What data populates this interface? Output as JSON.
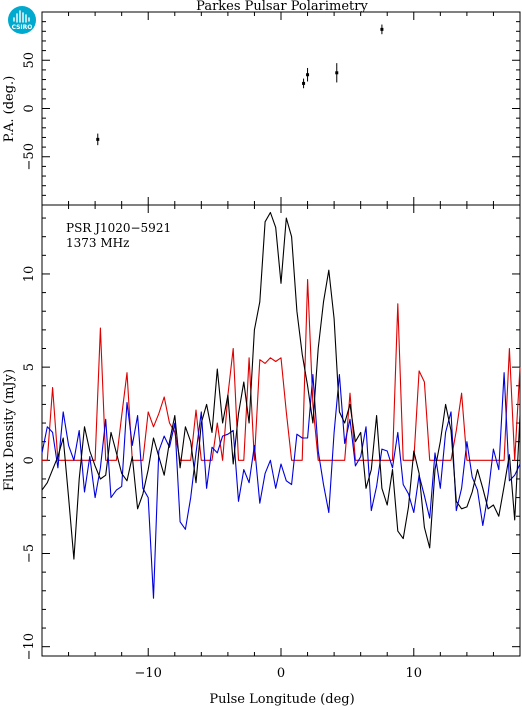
{
  "chart_data": [
    {
      "type": "scatter",
      "title": "Parkes Pulsar Polarimetry",
      "ylabel": "P.A. (deg.)",
      "xlim": [
        -18,
        18
      ],
      "ylim": [
        -100,
        100
      ],
      "yticks": [
        -50,
        0,
        50
      ],
      "points": [
        {
          "x": -13.8,
          "y": -32,
          "err": 6
        },
        {
          "x": 1.7,
          "y": 26,
          "err": 5
        },
        {
          "x": 2.0,
          "y": 35,
          "err": 7
        },
        {
          "x": 4.2,
          "y": 37,
          "err": 10
        },
        {
          "x": 7.6,
          "y": 82,
          "err": 5
        }
      ]
    },
    {
      "type": "line",
      "xlabel": "Pulse Longitude (deg)",
      "ylabel": "Flux Density (mJy)",
      "xlim": [
        -18,
        18
      ],
      "ylim": [
        -10.5,
        13.7
      ],
      "xticks": [
        -10,
        0,
        10
      ],
      "yticks": [
        -10,
        -5,
        0,
        5,
        10
      ],
      "annotations": [
        "PSR J1020−5921",
        "1373 MHz"
      ],
      "x": [
        -18.0,
        -17.6,
        -17.2,
        -16.8,
        -16.4,
        -16.0,
        -15.6,
        -15.2,
        -14.8,
        -14.4,
        -14.0,
        -13.6,
        -13.2,
        -12.8,
        -12.4,
        -12.0,
        -11.6,
        -11.2,
        -10.8,
        -10.4,
        -10.0,
        -9.6,
        -9.2,
        -8.8,
        -8.4,
        -8.0,
        -7.6,
        -7.2,
        -6.8,
        -6.4,
        -6.0,
        -5.6,
        -5.2,
        -4.8,
        -4.4,
        -4.0,
        -3.6,
        -3.2,
        -2.8,
        -2.4,
        -2.0,
        -1.6,
        -1.2,
        -0.8,
        -0.4,
        0.0,
        0.4,
        0.8,
        1.2,
        1.6,
        2.0,
        2.4,
        2.8,
        3.2,
        3.6,
        4.0,
        4.4,
        4.8,
        5.2,
        5.6,
        6.0,
        6.4,
        6.8,
        7.2,
        7.6,
        8.0,
        8.4,
        8.8,
        9.2,
        9.6,
        10.0,
        10.4,
        10.8,
        11.2,
        11.6,
        12.0,
        12.4,
        12.8,
        13.2,
        13.6,
        14.0,
        14.4,
        14.8,
        15.2,
        15.6,
        16.0,
        16.4,
        16.8,
        17.2,
        17.6,
        18.0
      ],
      "series": [
        {
          "color": "#000000",
          "values": [
            -1.6,
            -1.2,
            -0.5,
            0.2,
            1.2,
            -2.0,
            -5.3,
            -1.0,
            1.8,
            0.5,
            -0.3,
            -1.0,
            -0.8,
            1.5,
            0.4,
            -0.7,
            -1.1,
            0.2,
            -2.6,
            -1.8,
            -0.5,
            1.2,
            0.2,
            -0.8,
            1.0,
            2.4,
            -0.4,
            1.8,
            1.0,
            -1.2,
            2.0,
            3.0,
            1.5,
            4.9,
            2.0,
            3.5,
            -0.2,
            2.5,
            4.2,
            2.0,
            7.0,
            8.5,
            12.8,
            13.3,
            12.5,
            9.5,
            13.0,
            12.0,
            8.0,
            5.7,
            4.0,
            2.0,
            6.0,
            8.5,
            10.2,
            7.6,
            2.6,
            2.0,
            3.0,
            1.0,
            1.5,
            -1.5,
            -0.5,
            2.4,
            -1.5,
            -2.4,
            -0.5,
            -3.8,
            -4.2,
            -2.5,
            0.5,
            -0.7,
            -3.6,
            -4.7,
            -0.5,
            1.0,
            3.0,
            1.6,
            -2.2,
            -2.6,
            -2.5,
            -1.7,
            -0.5,
            -1.5,
            -2.6,
            -2.4,
            -3.0,
            -1.4,
            0.3,
            -3.2,
            2.4
          ]
        },
        {
          "color": "#dd0000",
          "values": [
            0.0,
            0.0,
            3.9,
            0.0,
            0.0,
            0.0,
            0.0,
            0.0,
            0.0,
            0.0,
            0.0,
            7.1,
            0.0,
            0.0,
            0.0,
            2.4,
            4.7,
            0.0,
            0.0,
            0.0,
            2.6,
            1.8,
            2.5,
            3.4,
            2.0,
            1.5,
            0.0,
            0.0,
            0.0,
            2.7,
            0.0,
            0.0,
            0.0,
            2.0,
            0.0,
            3.5,
            6.0,
            0.0,
            0.0,
            5.5,
            0.0,
            5.4,
            5.2,
            5.5,
            5.3,
            5.5,
            2.6,
            0.0,
            0.0,
            0.0,
            9.7,
            3.0,
            0.0,
            0.0,
            0.0,
            0.0,
            0.0,
            0.0,
            3.6,
            0.0,
            0.0,
            0.0,
            0.0,
            0.0,
            0.0,
            0.0,
            0.0,
            8.4,
            0.0,
            0.0,
            0.0,
            4.8,
            4.2,
            0.0,
            0.0,
            0.0,
            0.0,
            0.0,
            1.6,
            3.6,
            0.0,
            0.0,
            0.0,
            0.0,
            0.0,
            0.0,
            0.0,
            0.0,
            6.0,
            0.0,
            5.0
          ]
        },
        {
          "color": "#0000dd",
          "values": [
            0.4,
            1.8,
            1.5,
            -0.4,
            2.6,
            0.8,
            0.0,
            1.6,
            -1.7,
            0.2,
            -2.0,
            -0.4,
            2.2,
            -2.0,
            -1.6,
            -1.4,
            3.1,
            0.8,
            2.4,
            -1.5,
            -2.0,
            -7.4,
            0.5,
            1.3,
            0.7,
            2.0,
            -3.3,
            -3.7,
            -2.0,
            0.4,
            2.6,
            -1.5,
            0.7,
            0.4,
            1.3,
            1.4,
            1.6,
            -2.2,
            -0.5,
            -1.2,
            0.8,
            -2.3,
            -0.7,
            0.0,
            -1.5,
            -0.2,
            -1.1,
            -1.3,
            1.4,
            1.2,
            1.2,
            4.6,
            0.5,
            -1.3,
            -2.8,
            1.5,
            4.6,
            0.9,
            2.2,
            -0.3,
            0.2,
            1.8,
            -2.7,
            -1.4,
            0.6,
            0.5,
            -0.4,
            1.5,
            -1.3,
            -1.8,
            -2.8,
            -0.8,
            -1.9,
            -3.1,
            0.4,
            -1.5,
            1.5,
            2.6,
            -2.7,
            -1.5,
            1.0,
            -0.9,
            -1.6,
            -3.5,
            -1.8,
            0.6,
            -0.5,
            4.7,
            -1.1,
            -0.8,
            -0.2
          ]
        }
      ]
    }
  ],
  "logo": {
    "text": "CSIRO",
    "color": "#00A9CE"
  }
}
